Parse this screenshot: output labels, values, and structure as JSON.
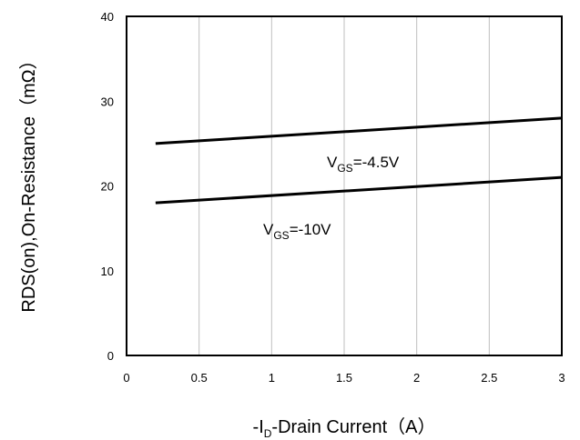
{
  "chart_data": {
    "type": "line",
    "xlabel": {
      "prefix": "-I",
      "sub": "D",
      "suffix": "-Drain Current（A）"
    },
    "ylabel": "RDS(on),On-Resistance（mΩ）",
    "xlim": [
      0,
      3
    ],
    "ylim": [
      0,
      40
    ],
    "xticks": [
      0,
      0.5,
      1,
      1.5,
      2,
      2.5,
      3
    ],
    "yticks": [
      0,
      10,
      20,
      30,
      40
    ],
    "grid": {
      "vertical": true,
      "horizontal": false
    },
    "series": [
      {
        "name": "VGS=-4.5V",
        "label": {
          "main": "V",
          "sub": "GS",
          "rest": "=-4.5V"
        },
        "x": [
          0.2,
          3
        ],
        "y": [
          25,
          28
        ]
      },
      {
        "name": "VGS=-10V",
        "label": {
          "main": "V",
          "sub": "GS",
          "rest": "=-10V"
        },
        "x": [
          0.2,
          3
        ],
        "y": [
          18,
          21
        ]
      }
    ]
  }
}
